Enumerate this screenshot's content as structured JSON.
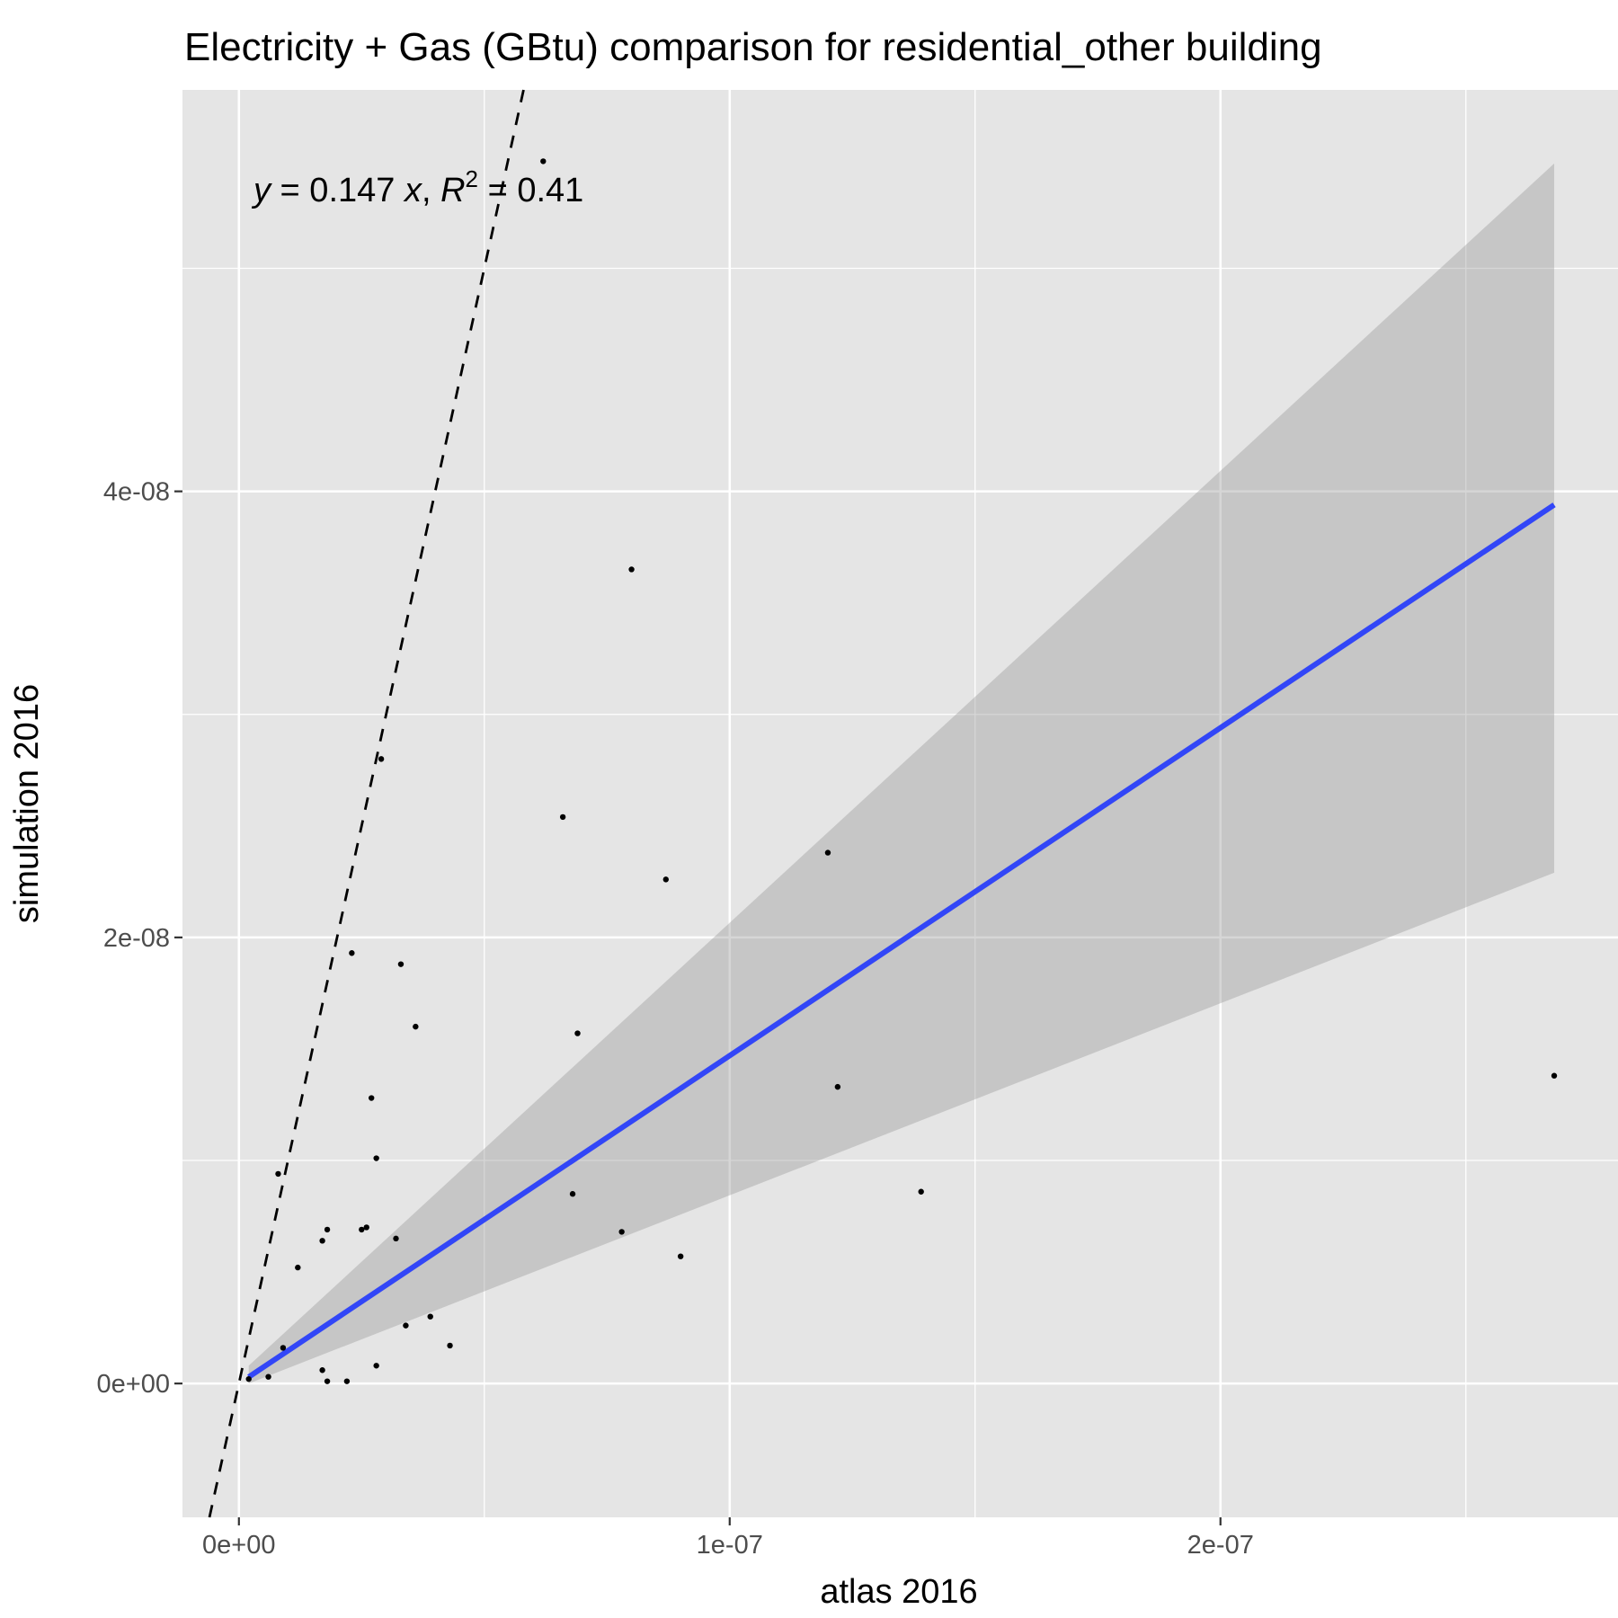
{
  "chart_data": {
    "type": "scatter",
    "title": "Electricity + Gas (GBtu) comparison for residential_other building",
    "xlabel": "atlas 2016",
    "ylabel": "simulation 2016",
    "xlim": [
      -1.15e-08,
      2.81e-07
    ],
    "ylim": [
      -6e-09,
      5.8e-08
    ],
    "x_ticks": [
      0,
      1e-07,
      2e-07
    ],
    "x_tick_labels": [
      "0e+00",
      "1e-07",
      "2e-07"
    ],
    "x_minor_ticks": [
      5e-08,
      1.5e-07,
      2.5e-07
    ],
    "y_ticks": [
      0,
      2e-08,
      4e-08
    ],
    "y_tick_labels": [
      "0e+00",
      "2e-08",
      "4e-08"
    ],
    "y_minor_ticks": [
      1e-08,
      3e-08,
      5e-08
    ],
    "grid": true,
    "background": "#e5e5e5",
    "annotation": {
      "y": "y",
      "eq": " = 0.147 ",
      "x": "x",
      "comma": ", ",
      "R": "R",
      "sup": "2",
      "rest": " = 0.41"
    },
    "identity_line": {
      "slope": 1,
      "intercept": 0,
      "style": "dashed",
      "color": "#000000"
    },
    "fit": {
      "slope": 0.147,
      "x_range": [
        2e-09,
        2.68e-07
      ],
      "color": "#3246f7",
      "band_color": "#999999",
      "band": {
        "x": [
          2e-09,
          2.68e-07
        ],
        "upper": [
          8e-10,
          5.47e-08
        ],
        "lower": [
          0,
          2.29e-08
        ]
      }
    },
    "points": [
      {
        "x": 6.2e-08,
        "y": 5.48e-08
      },
      {
        "x": 8e-08,
        "y": 3.65e-08
      },
      {
        "x": 2.9e-08,
        "y": 2.8e-08
      },
      {
        "x": 6.6e-08,
        "y": 2.54e-08
      },
      {
        "x": 1.2e-07,
        "y": 2.38e-08
      },
      {
        "x": 8.7e-08,
        "y": 2.26e-08
      },
      {
        "x": 2.3e-08,
        "y": 1.93e-08
      },
      {
        "x": 3.3e-08,
        "y": 1.88e-08
      },
      {
        "x": 3.6e-08,
        "y": 1.6e-08
      },
      {
        "x": 6.9e-08,
        "y": 1.57e-08
      },
      {
        "x": 2.68e-07,
        "y": 1.38e-08
      },
      {
        "x": 1.22e-07,
        "y": 1.33e-08
      },
      {
        "x": 2.7e-08,
        "y": 1.28e-08
      },
      {
        "x": 2.8e-08,
        "y": 1.01e-08
      },
      {
        "x": 8e-09,
        "y": 9.4e-09
      },
      {
        "x": 6.8e-08,
        "y": 8.5e-09
      },
      {
        "x": 1.39e-07,
        "y": 8.6e-09
      },
      {
        "x": 1.8e-08,
        "y": 6.9e-09
      },
      {
        "x": 2.5e-08,
        "y": 6.9e-09
      },
      {
        "x": 2.6e-08,
        "y": 7e-09
      },
      {
        "x": 7.8e-08,
        "y": 6.8e-09
      },
      {
        "x": 1.7e-08,
        "y": 6.4e-09
      },
      {
        "x": 3.2e-08,
        "y": 6.5e-09
      },
      {
        "x": 9e-08,
        "y": 5.7e-09
      },
      {
        "x": 1.2e-08,
        "y": 5.2e-09
      },
      {
        "x": 3.9e-08,
        "y": 3e-09
      },
      {
        "x": 3.4e-08,
        "y": 2.6e-09
      },
      {
        "x": 4.3e-08,
        "y": 1.7e-09
      },
      {
        "x": 9e-09,
        "y": 1.6e-09
      },
      {
        "x": 2.8e-08,
        "y": 8e-10
      },
      {
        "x": 1.7e-08,
        "y": 6e-10
      },
      {
        "x": 6e-09,
        "y": 3e-10
      },
      {
        "x": 2e-09,
        "y": 2e-10
      },
      {
        "x": 1.8e-08,
        "y": 1e-10
      },
      {
        "x": 2.2e-08,
        "y": 1e-10
      }
    ]
  }
}
